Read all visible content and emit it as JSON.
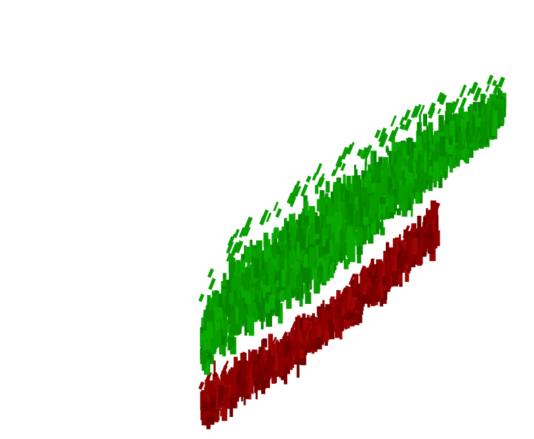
{
  "chart_data": {
    "type": "scatter",
    "title": "",
    "xlabel": "",
    "ylabel": "",
    "grid": false,
    "legend": "none",
    "colors": {
      "upper_series": "#079d00",
      "upper_series_dark": "#048400",
      "lower_series": "#8c0000",
      "lower_series_dark": "#6e0000",
      "background": "#ffffff"
    },
    "series": [
      {
        "color": "#079d00",
        "bands": [
          {
            "x": 0.0,
            "lo": 0.17,
            "hi": 0.36
          },
          {
            "x": 0.03,
            "lo": 0.19,
            "hi": 0.42
          },
          {
            "x": 0.06,
            "lo": 0.2,
            "hi": 0.47
          },
          {
            "x": 0.1,
            "lo": 0.22,
            "hi": 0.52
          },
          {
            "x": 0.14,
            "lo": 0.25,
            "hi": 0.57
          },
          {
            "x": 0.2,
            "lo": 0.28,
            "hi": 0.61
          },
          {
            "x": 0.26,
            "lo": 0.32,
            "hi": 0.65
          },
          {
            "x": 0.32,
            "lo": 0.36,
            "hi": 0.69
          },
          {
            "x": 0.38,
            "lo": 0.4,
            "hi": 0.73
          },
          {
            "x": 0.44,
            "lo": 0.45,
            "hi": 0.77
          },
          {
            "x": 0.5,
            "lo": 0.5,
            "hi": 0.8
          },
          {
            "x": 0.56,
            "lo": 0.55,
            "hi": 0.84
          },
          {
            "x": 0.62,
            "lo": 0.6,
            "hi": 0.87
          },
          {
            "x": 0.68,
            "lo": 0.65,
            "hi": 0.9
          },
          {
            "x": 0.74,
            "lo": 0.7,
            "hi": 0.93
          },
          {
            "x": 0.8,
            "lo": 0.75,
            "hi": 0.95
          },
          {
            "x": 0.86,
            "lo": 0.8,
            "hi": 0.97
          },
          {
            "x": 0.92,
            "lo": 0.85,
            "hi": 0.99
          },
          {
            "x": 0.97,
            "lo": 0.9,
            "hi": 1.0
          }
        ]
      },
      {
        "color": "#8c0000",
        "bands": [
          {
            "x": 0.0,
            "lo": 0.0,
            "hi": 0.15
          },
          {
            "x": 0.05,
            "lo": 0.03,
            "hi": 0.18
          },
          {
            "x": 0.1,
            "lo": 0.06,
            "hi": 0.21
          },
          {
            "x": 0.16,
            "lo": 0.09,
            "hi": 0.24
          },
          {
            "x": 0.22,
            "lo": 0.13,
            "hi": 0.27
          },
          {
            "x": 0.28,
            "lo": 0.17,
            "hi": 0.3
          },
          {
            "x": 0.34,
            "lo": 0.21,
            "hi": 0.34
          },
          {
            "x": 0.4,
            "lo": 0.25,
            "hi": 0.38
          },
          {
            "x": 0.46,
            "lo": 0.29,
            "hi": 0.43
          },
          {
            "x": 0.52,
            "lo": 0.33,
            "hi": 0.48
          },
          {
            "x": 0.58,
            "lo": 0.38,
            "hi": 0.53
          },
          {
            "x": 0.64,
            "lo": 0.43,
            "hi": 0.58
          },
          {
            "x": 0.7,
            "lo": 0.49,
            "hi": 0.63
          },
          {
            "x": 0.76,
            "lo": 0.55,
            "hi": 0.68
          }
        ]
      }
    ],
    "xlim": [
      0,
      1
    ],
    "ylim": [
      0,
      1
    ]
  }
}
